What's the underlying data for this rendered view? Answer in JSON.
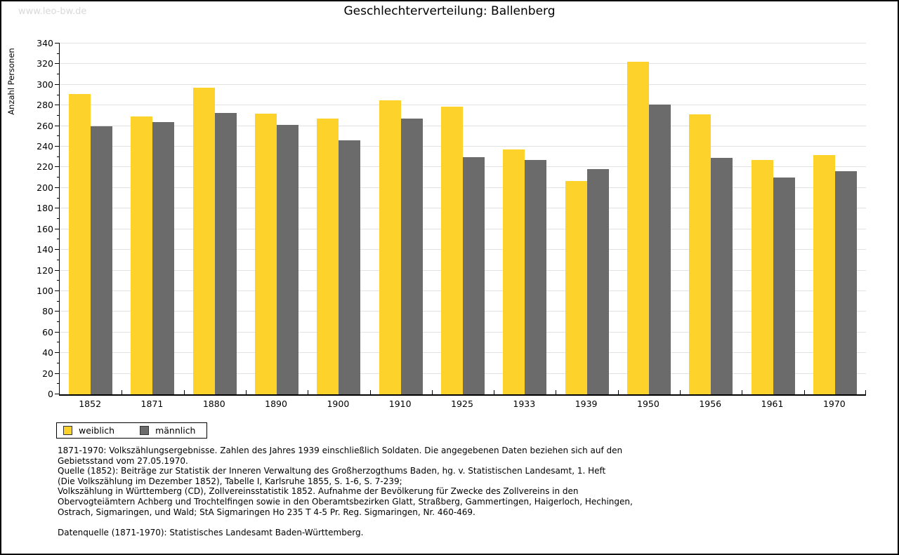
{
  "watermark": "www.leo-bw.de",
  "chart_data": {
    "type": "bar",
    "title": "Geschlechterverteilung: Ballenberg",
    "ylabel": "Anzahl Personen",
    "xlabel": "",
    "categories": [
      "1852",
      "1871",
      "1880",
      "1890",
      "1900",
      "1910",
      "1925",
      "1933",
      "1939",
      "1950",
      "1956",
      "1961",
      "1970"
    ],
    "series": [
      {
        "name": "weiblich",
        "color": "#fdd32b",
        "values": [
          291,
          269,
          297,
          272,
          267,
          285,
          279,
          237,
          207,
          322,
          271,
          227,
          232
        ]
      },
      {
        "name": "männlich",
        "color": "#6b6b6b",
        "values": [
          260,
          264,
          273,
          261,
          246,
          267,
          230,
          227,
          218,
          281,
          229,
          210,
          216
        ]
      }
    ],
    "ylim": [
      0,
      340
    ],
    "ytick_step": 20,
    "ytick_minor_step": 10,
    "grid": true,
    "legend_position": "bottom-left"
  },
  "footnote": {
    "lines": [
      "1871-1970: Volkszählungsergebnisse. Zahlen des Jahres 1939 einschließlich Soldaten. Die angegebenen Daten beziehen sich auf den",
      "Gebietsstand vom 27.05.1970.",
      "Quelle (1852): Beiträge zur Statistik der Inneren Verwaltung des Großherzogthums Baden, hg. v. Statistischen Landesamt, 1. Heft",
      "(Die Volkszählung im Dezember 1852), Tabelle I, Karlsruhe 1855, S. 1-6, S. 7-239;",
      "Volkszählung in Württemberg (CD), Zollvereinsstatistik 1852. Aufnahme der Bevölkerung für Zwecke des Zollvereins in den",
      "Obervogteiämtern Achberg und Trochtelfingen sowie in den Oberamtsbezirken Glatt, Straßberg, Gammertingen, Haigerloch, Hechingen,",
      "Ostrach, Sigmaringen, und Wald; StA Sigmaringen Ho 235 T 4-5 Pr. Reg. Sigmaringen, Nr. 460-469."
    ],
    "datasource": "Datenquelle (1871-1970): Statistisches Landesamt Baden-Württemberg."
  },
  "colors": {
    "weiblich": "#fdd32b",
    "männlich": "#6b6b6b",
    "gridline": "#e2e2e2",
    "axis": "#000000",
    "watermark": "#d9d9d9"
  }
}
